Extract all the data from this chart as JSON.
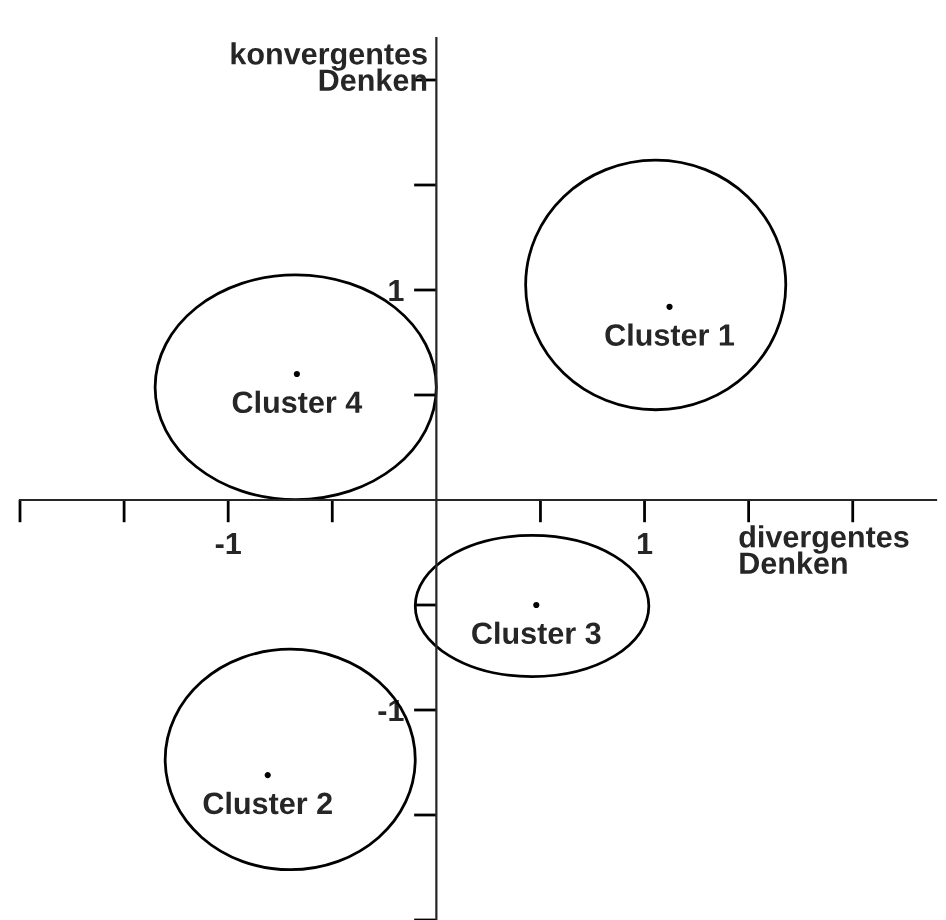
{
  "chart_data": {
    "type": "scatter",
    "xlabel": "divergentes\nDenken",
    "ylabel": "konvergentes\nDenken",
    "x": [
      1.12,
      -0.67,
      0.48,
      -0.81
    ],
    "values": [
      0.92,
      0.6,
      -0.5,
      -1.31
    ],
    "color": "#000000",
    "marker": "circle",
    "annotations": [
      {
        "text": "Cluster 1",
        "x": 1.12,
        "y": 0.92
      },
      {
        "text": "Cluster 4",
        "x": -0.67,
        "y": 0.6
      },
      {
        "text": "Cluster 3",
        "x": 0.48,
        "y": -0.5
      },
      {
        "text": "Cluster 2",
        "x": -0.81,
        "y": -1.31
      }
    ],
    "xlim": [
      -2,
      2.4
    ],
    "ylim": [
      -2,
      2.2
    ],
    "xticks": [
      {
        "value": -2,
        "label": null
      },
      {
        "value": -1.5,
        "label": null
      },
      {
        "value": -1,
        "label": "-1"
      },
      {
        "value": -0.5,
        "label": null
      },
      {
        "value": 0.5,
        "label": null
      },
      {
        "value": 1,
        "label": "1"
      },
      {
        "value": 1.5,
        "label": null
      },
      {
        "value": 2,
        "label": null
      }
    ],
    "yticks": [
      {
        "value": -2,
        "label": null
      },
      {
        "value": -1.5,
        "label": null
      },
      {
        "value": -1,
        "label": "-1"
      },
      {
        "value": -0.5,
        "label": null
      },
      {
        "value": 0.5,
        "label": null
      },
      {
        "value": 1,
        "label": "1"
      },
      {
        "value": 1.5,
        "label": null
      },
      {
        "value": 2,
        "label": null
      }
    ],
    "grid": false,
    "legend": false
  }
}
